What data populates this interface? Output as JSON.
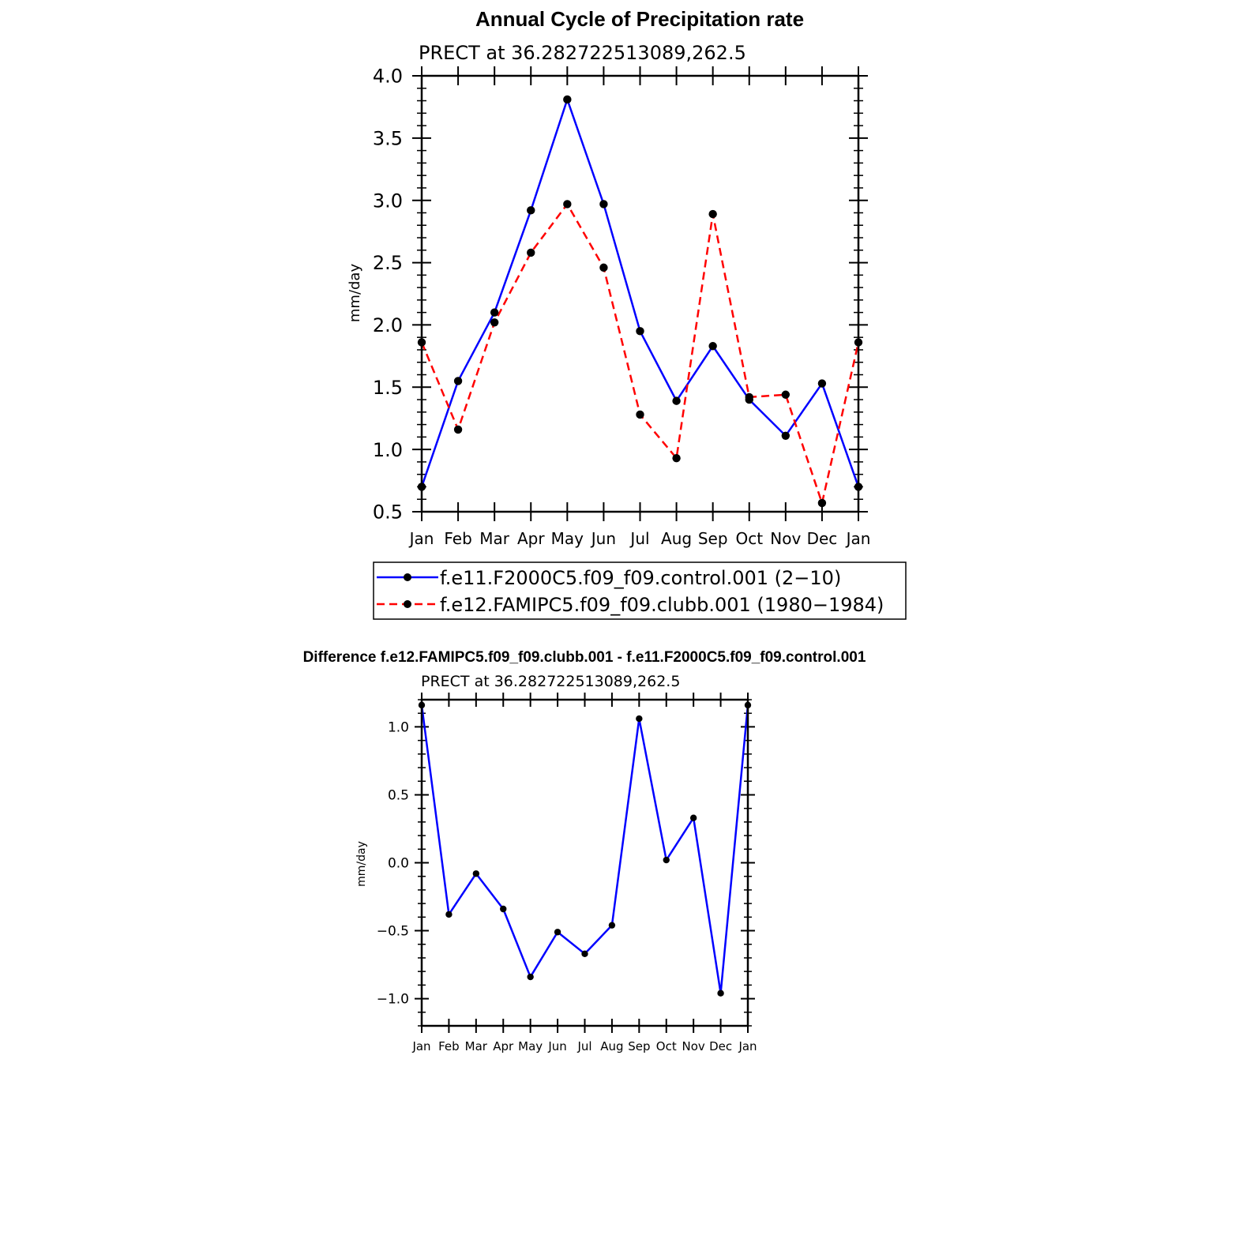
{
  "chart_data": [
    {
      "type": "line",
      "title": "Annual Cycle of Precipitation rate",
      "subtitle": "PRECT at 36.282722513089,262.5",
      "xlabel": "",
      "ylabel": "mm/day",
      "ylim": [
        0.5,
        4.0
      ],
      "yticks": [
        0.5,
        1.0,
        1.5,
        2.0,
        2.5,
        3.0,
        3.5,
        4.0
      ],
      "ytick_labels": [
        "0.5",
        "1.0",
        "1.5",
        "2.0",
        "2.5",
        "3.0",
        "3.5",
        "4.0"
      ],
      "categories": [
        "Jan",
        "Feb",
        "Mar",
        "Apr",
        "May",
        "Jun",
        "Jul",
        "Aug",
        "Sep",
        "Oct",
        "Nov",
        "Dec",
        "Jan"
      ],
      "series": [
        {
          "name": "f.e11.F2000C5.f09_f09.control.001 (2−10)",
          "color": "#0000ff",
          "dash": "solid",
          "values": [
            0.7,
            1.55,
            2.1,
            2.92,
            3.81,
            2.97,
            1.95,
            1.39,
            1.83,
            1.4,
            1.11,
            1.53,
            0.7
          ]
        },
        {
          "name": "f.e12.FAMIPC5.f09_f09.clubb.001 (1980−1984)",
          "color": "#ff0000",
          "dash": "dashed",
          "values": [
            1.86,
            1.16,
            2.02,
            2.58,
            2.97,
            2.46,
            1.28,
            0.93,
            2.89,
            1.42,
            1.44,
            0.57,
            1.86
          ]
        }
      ],
      "legend": "below"
    },
    {
      "type": "line",
      "title": "Difference f.e12.FAMIPC5.f09_f09.clubb.001 - f.e11.F2000C5.f09_f09.control.001",
      "subtitle": "PRECT at 36.282722513089,262.5",
      "xlabel": "",
      "ylabel": "mm/day",
      "ylim": [
        -1.2,
        1.2
      ],
      "yticks": [
        -1.0,
        -0.5,
        0.0,
        0.5,
        1.0
      ],
      "ytick_labels": [
        "−1.0",
        "−0.5",
        "0.0",
        "0.5",
        "1.0"
      ],
      "categories": [
        "Jan",
        "Feb",
        "Mar",
        "Apr",
        "May",
        "Jun",
        "Jul",
        "Aug",
        "Sep",
        "Oct",
        "Nov",
        "Dec",
        "Jan"
      ],
      "series": [
        {
          "name": "difference",
          "color": "#0000ff",
          "dash": "solid",
          "values": [
            1.16,
            -0.38,
            -0.08,
            -0.34,
            -0.84,
            -0.51,
            -0.67,
            -0.46,
            1.06,
            0.02,
            0.33,
            -0.96,
            1.16
          ]
        }
      ]
    }
  ]
}
